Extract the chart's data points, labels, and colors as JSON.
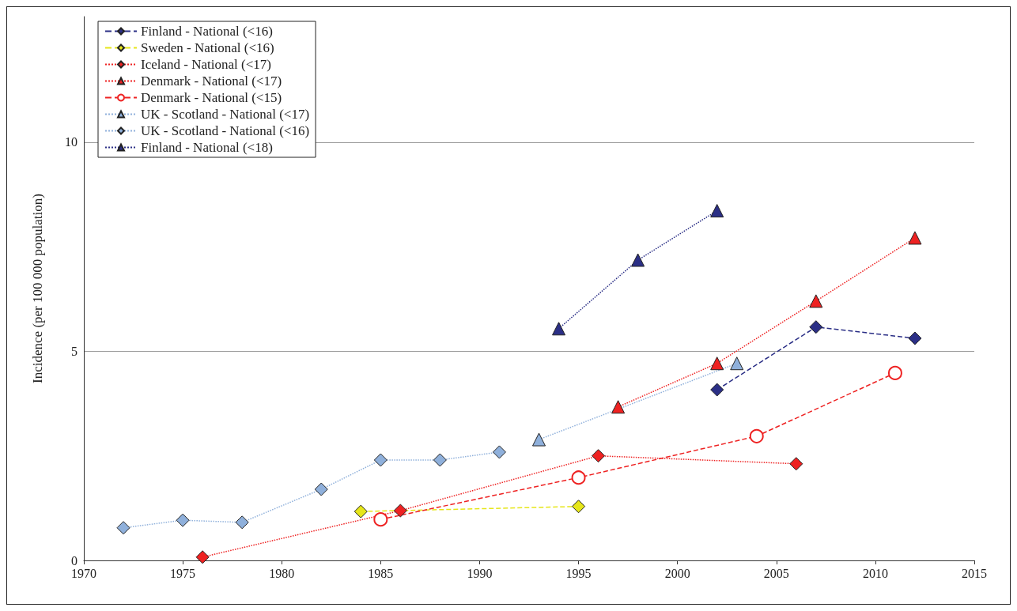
{
  "chart_data": {
    "type": "line",
    "ylabel": "Incidence (per 100 000 population)",
    "xlim": [
      1970,
      2015
    ],
    "xticks": [
      1970,
      1975,
      1980,
      1985,
      1990,
      1995,
      2000,
      2005,
      2010,
      2015
    ],
    "ylim": [
      0,
      13
    ],
    "yticks": [
      0,
      5,
      10
    ],
    "grid": "y",
    "legend": "top left",
    "series": [
      {
        "name": "Finland - National (<16)",
        "color": "#2b2f86",
        "marker": "diamond",
        "line_style": "dashed",
        "x": [
          2002,
          2007,
          2012
        ],
        "values": [
          4.08,
          5.58,
          5.31
        ]
      },
      {
        "name": "Sweden - National (<16)",
        "color": "#e6e619",
        "marker": "diamond",
        "line_style": "dashed",
        "x": [
          1984,
          1995
        ],
        "values": [
          1.17,
          1.29
        ]
      },
      {
        "name": "Iceland - National (<17)",
        "color": "#ee2222",
        "marker": "diamond",
        "line_style": "dotted",
        "x": [
          1976,
          1986,
          1996,
          2006
        ],
        "values": [
          0.08,
          1.19,
          2.5,
          2.31
        ]
      },
      {
        "name": "Denmark - National (<17)",
        "color": "#ee2222",
        "marker": "triangle",
        "line_style": "dotted",
        "x": [
          1997,
          2002,
          2007,
          2012
        ],
        "values": [
          3.67,
          4.71,
          6.2,
          7.71
        ]
      },
      {
        "name": "Denmark - National (<15)",
        "color": "#ee2222",
        "marker": "circle",
        "line_style": "dashed",
        "x": [
          1985,
          1995,
          2004,
          2011
        ],
        "values": [
          0.98,
          1.98,
          2.97,
          4.48
        ]
      },
      {
        "name": "UK - Scotland - National (<17)",
        "color": "#8fb0db",
        "marker": "triangle",
        "line_style": "dotted",
        "x": [
          1993,
          2003
        ],
        "values": [
          2.89,
          4.71
        ]
      },
      {
        "name": "UK - Scotland - National (<16)",
        "color": "#8fb0db",
        "marker": "diamond",
        "line_style": "dotted",
        "x": [
          1972,
          1975,
          1978,
          1982,
          1985,
          1988,
          1991
        ],
        "values": [
          0.78,
          0.96,
          0.91,
          1.7,
          2.4,
          2.4,
          2.59
        ]
      },
      {
        "name": "Finland - National (<18)",
        "color": "#2b2f86",
        "marker": "triangle",
        "line_style": "dotted",
        "x": [
          1994,
          1998,
          2002
        ],
        "values": [
          5.54,
          7.18,
          8.36
        ]
      }
    ]
  }
}
